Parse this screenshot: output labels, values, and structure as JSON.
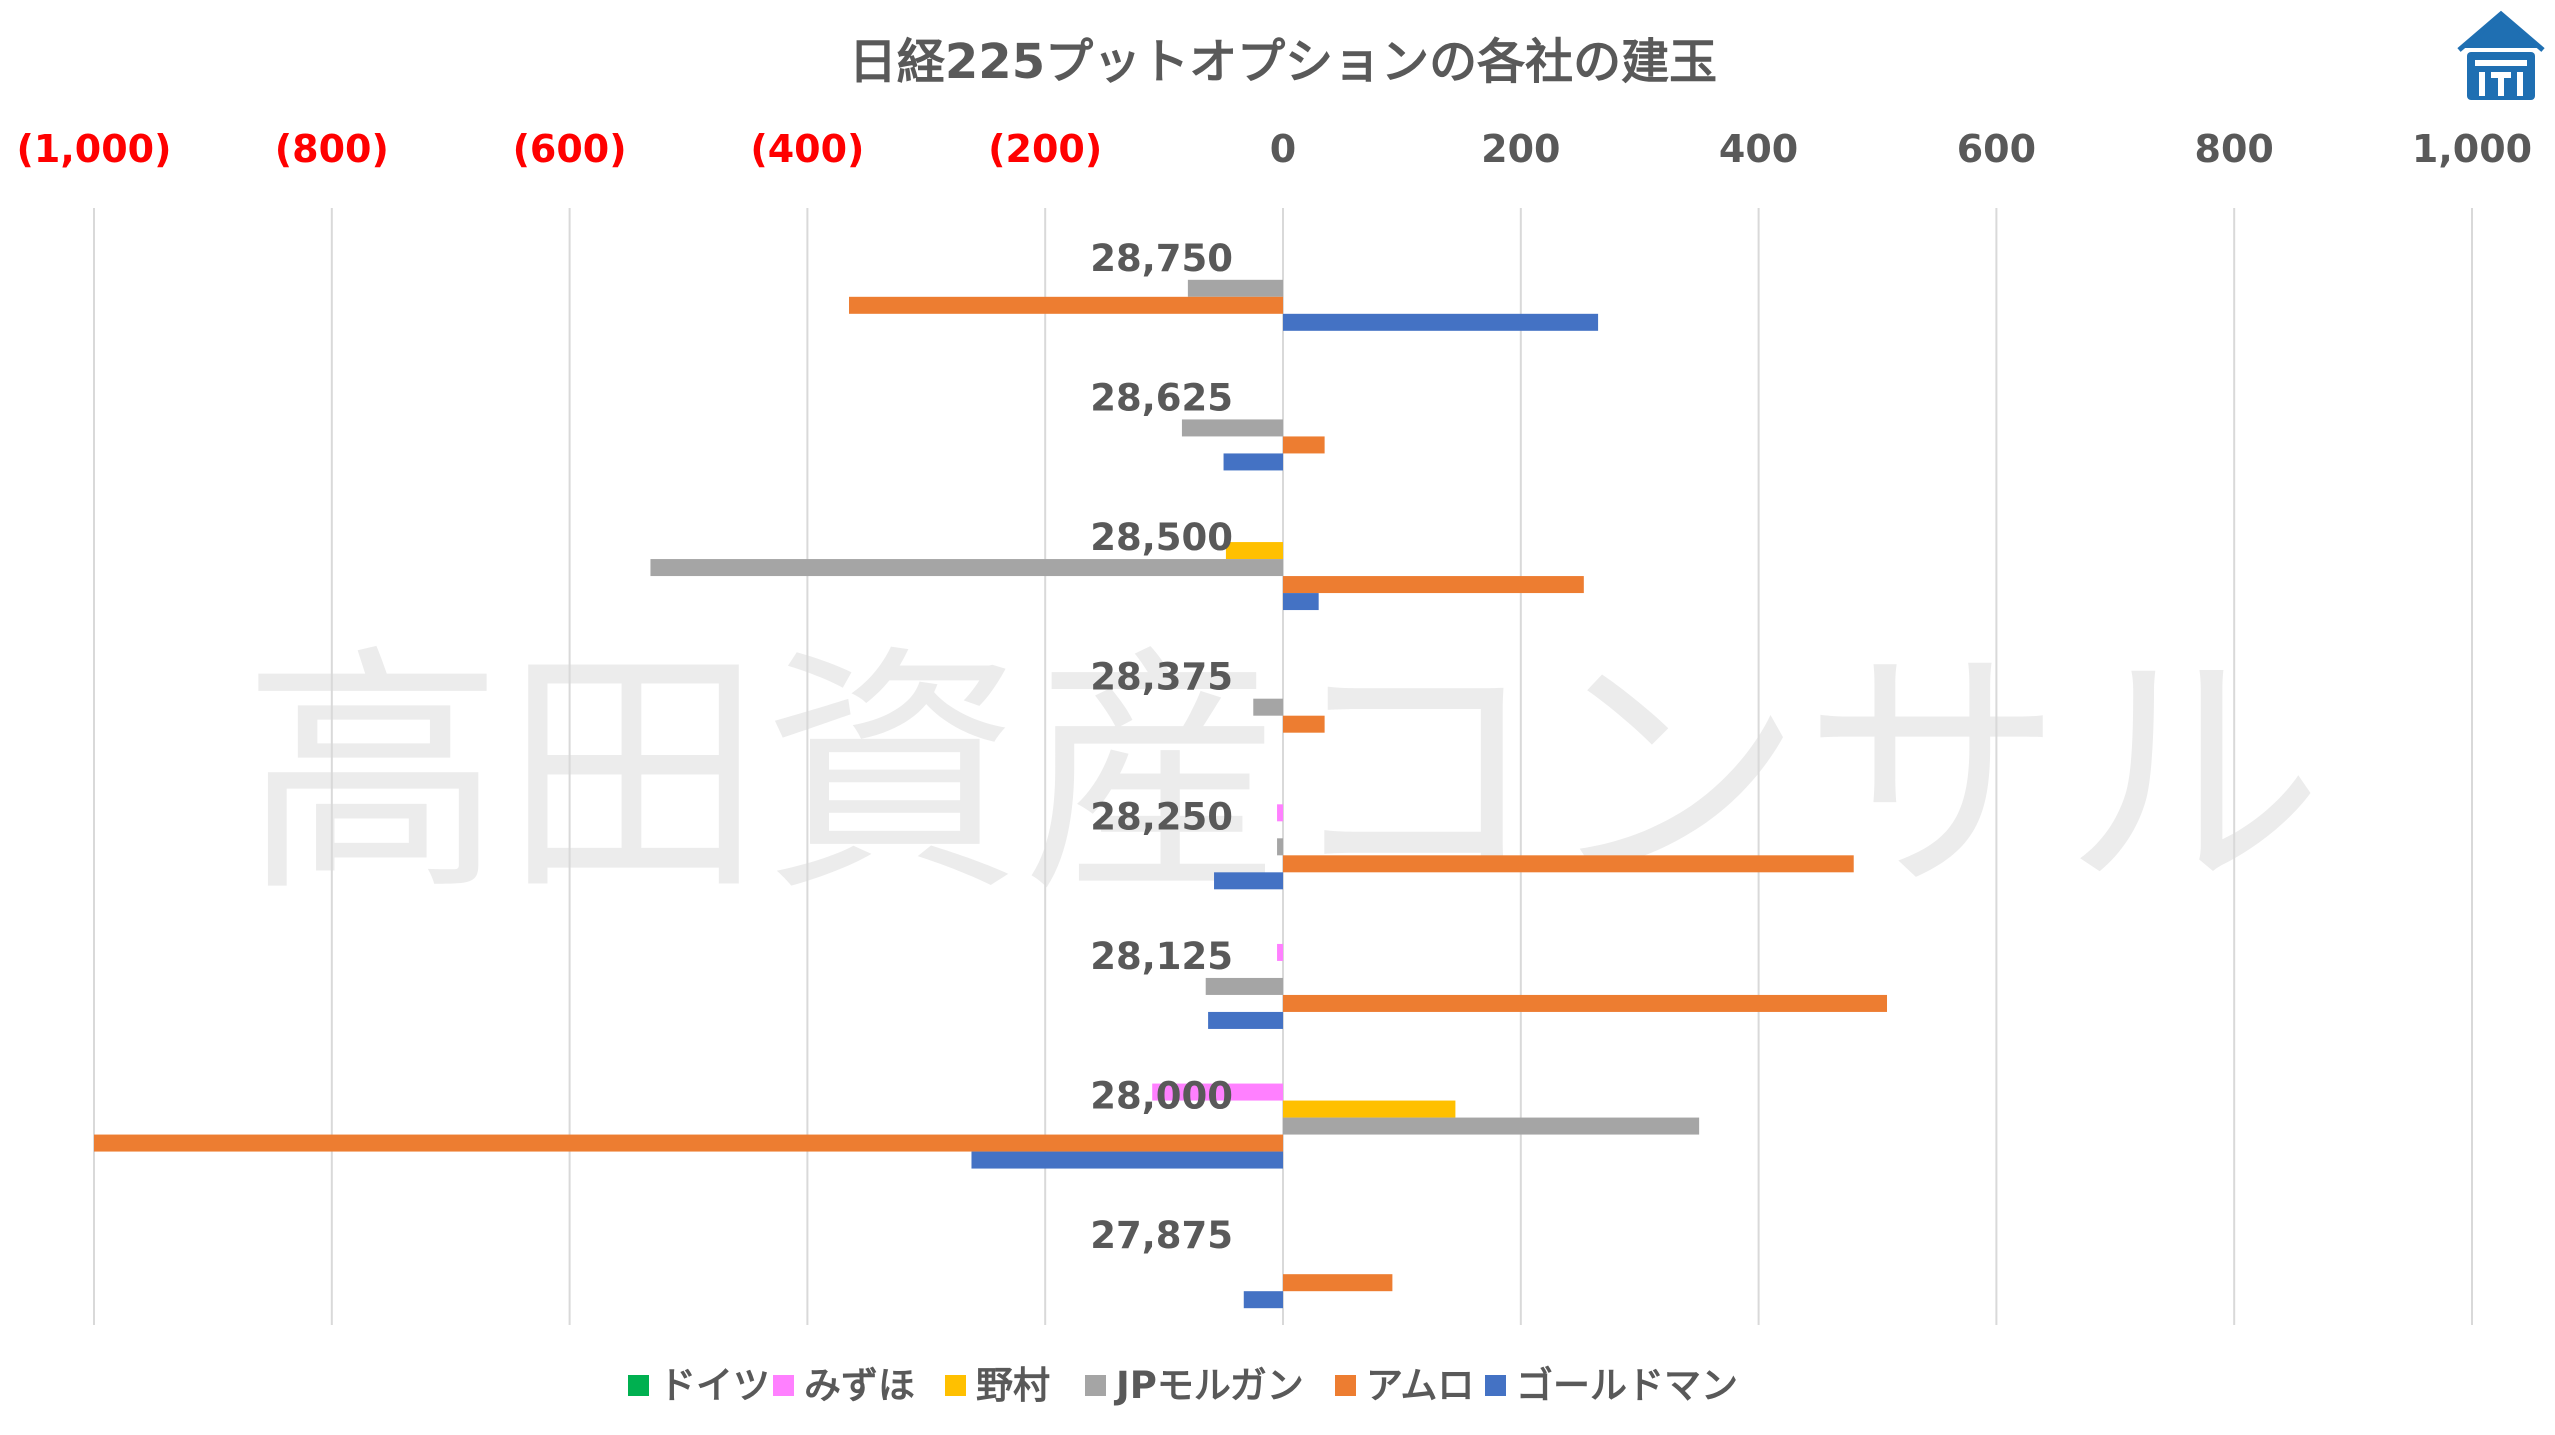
{
  "chart_data": {
    "type": "bar",
    "orientation": "horizontal",
    "title": "日経225プットオプションの各社の建玉",
    "watermark": "高田資産コンサル",
    "xlim": [
      -1000,
      1000
    ],
    "x_ticks": [
      -1000,
      -800,
      -600,
      -400,
      -200,
      0,
      200,
      400,
      600,
      800,
      1000
    ],
    "x_tick_labels": [
      "(1,000)",
      "(800)",
      "(600)",
      "(400)",
      "(200)",
      "0",
      "200",
      "400",
      "600",
      "800",
      "1,000"
    ],
    "x_axis_position": "top",
    "negative_tick_color": "#ff0000",
    "grid": true,
    "legend_position": "bottom",
    "categories": [
      "28,750",
      "28,625",
      "28,500",
      "28,375",
      "28,250",
      "28,125",
      "28,000",
      "27,875"
    ],
    "series": [
      {
        "name": "ドイツ",
        "color": "#00b050",
        "values": [
          0,
          0,
          0,
          0,
          0,
          0,
          0,
          0
        ]
      },
      {
        "name": "みずほ",
        "color": "#ff80ff",
        "values": [
          0,
          0,
          0,
          0,
          -5,
          -5,
          -110,
          0
        ]
      },
      {
        "name": "野村",
        "color": "#ffc000",
        "values": [
          0,
          0,
          -48,
          0,
          0,
          0,
          145,
          0
        ]
      },
      {
        "name": "JPモルガン",
        "color": "#a5a5a5",
        "values": [
          -80,
          -85,
          -532,
          -25,
          -5,
          -65,
          350,
          0
        ]
      },
      {
        "name": "アムロ",
        "color": "#ed7d31",
        "values": [
          -365,
          35,
          253,
          35,
          480,
          508,
          -1000,
          92
        ]
      },
      {
        "name": "ゴールドマン",
        "color": "#4472c4",
        "values": [
          265,
          -50,
          30,
          0,
          -58,
          -63,
          -262,
          -33
        ]
      }
    ]
  },
  "logo": {
    "icon": "house-logo-icon",
    "color": "#1f6fb2"
  }
}
